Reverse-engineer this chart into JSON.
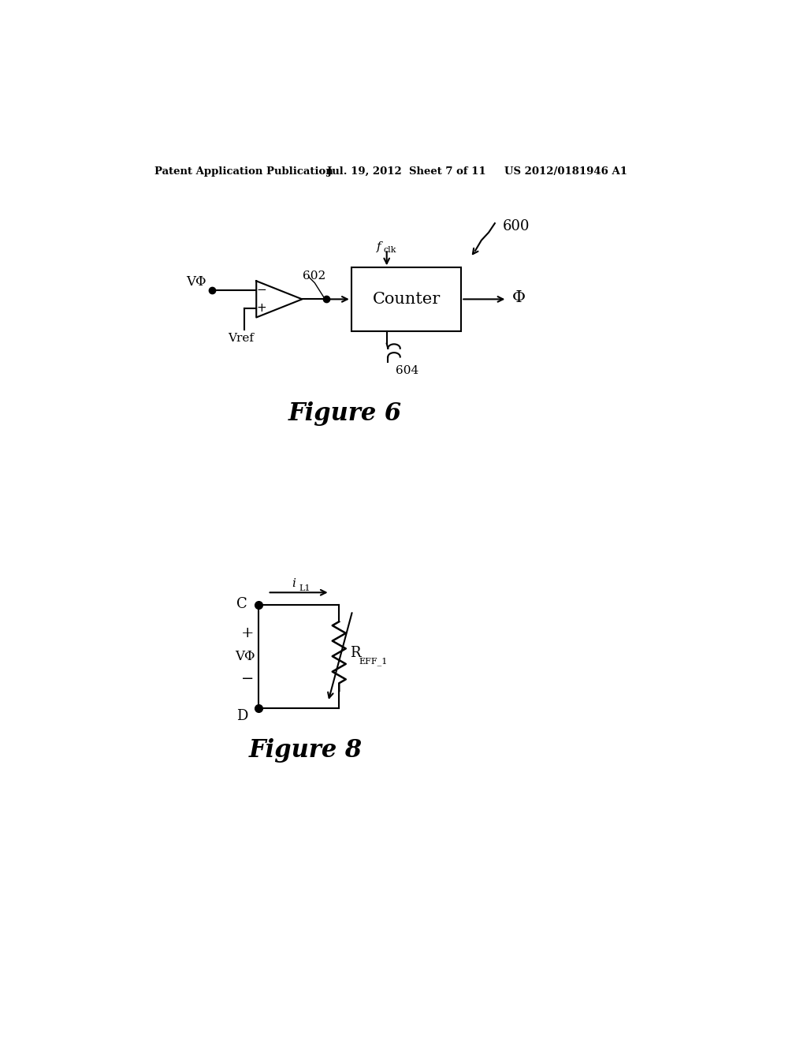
{
  "bg_color": "#ffffff",
  "header_text": "Patent Application Publication",
  "header_date": "Jul. 19, 2012  Sheet 7 of 11",
  "header_patent": "US 2012/0181946 A1",
  "fig6_title": "Figure 6",
  "fig8_title": "Figure 8",
  "label_600": "600",
  "label_602": "602",
  "label_604": "604",
  "label_fclk": "f",
  "label_fclk_sub": "clk",
  "label_counter": "Counter",
  "label_Vphi_6": "VΦ",
  "label_Vref": "Vref",
  "label_Phi_out": "Φ",
  "label_iL1": "i",
  "label_iL1_sub": "L1",
  "label_C": "C",
  "label_plus": "+",
  "label_minus": "−",
  "label_Vphi_8": "VΦ",
  "label_D": "D",
  "label_REFF1": "R",
  "label_REFF1_sub": "EFF_1"
}
